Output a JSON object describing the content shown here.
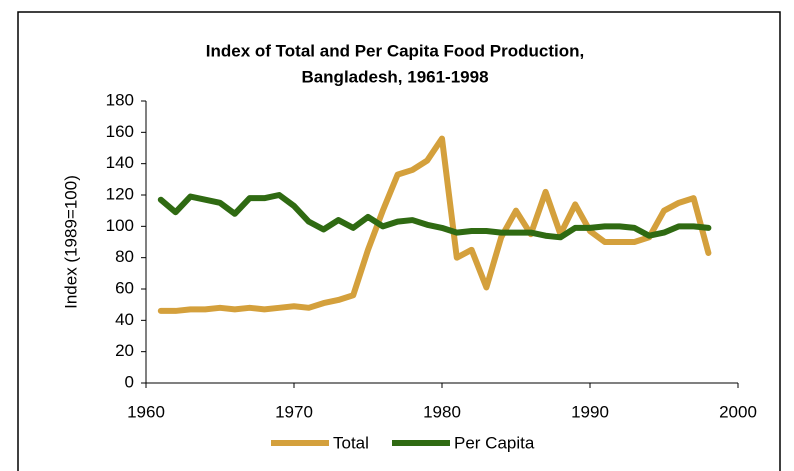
{
  "chart_data": {
    "type": "line",
    "title": [
      "Index of Total and Per Capita Food Production,",
      "Bangladesh, 1961-1998"
    ],
    "ylabel": "Index (1989=100)",
    "x": [
      1961,
      1962,
      1963,
      1964,
      1965,
      1966,
      1967,
      1968,
      1969,
      1970,
      1971,
      1972,
      1973,
      1974,
      1975,
      1976,
      1977,
      1978,
      1979,
      1980,
      1981,
      1982,
      1983,
      1984,
      1985,
      1986,
      1987,
      1988,
      1989,
      1990,
      1991,
      1992,
      1993,
      1994,
      1995,
      1996,
      1997,
      1998
    ],
    "series": [
      {
        "name": "Total",
        "color": "#d4a03c",
        "values": [
          46,
          46,
          47,
          47,
          48,
          47,
          48,
          47,
          48,
          49,
          48,
          51,
          53,
          56,
          85,
          110,
          133,
          136,
          142,
          156,
          80,
          85,
          61,
          93,
          110,
          95,
          122,
          95,
          114,
          97,
          90,
          90,
          90,
          93,
          110,
          115,
          118,
          83
        ]
      },
      {
        "name": "Per Capita",
        "color": "#2f6a12",
        "values": [
          117,
          109,
          119,
          117,
          115,
          108,
          118,
          118,
          120,
          113,
          103,
          98,
          104,
          99,
          106,
          100,
          103,
          104,
          101,
          99,
          96,
          97,
          97,
          96,
          96,
          96,
          94,
          93,
          99,
          99,
          100,
          100,
          99,
          94,
          96,
          100,
          100,
          99
        ]
      }
    ],
    "xlim": [
      1960,
      2000
    ],
    "xticks": [
      1960,
      1970,
      1980,
      1990,
      2000
    ],
    "ylim": [
      0,
      180
    ],
    "yticks": [
      0,
      20,
      40,
      60,
      80,
      100,
      120,
      140,
      160,
      180
    ],
    "grid": false,
    "legend": "bottom"
  }
}
